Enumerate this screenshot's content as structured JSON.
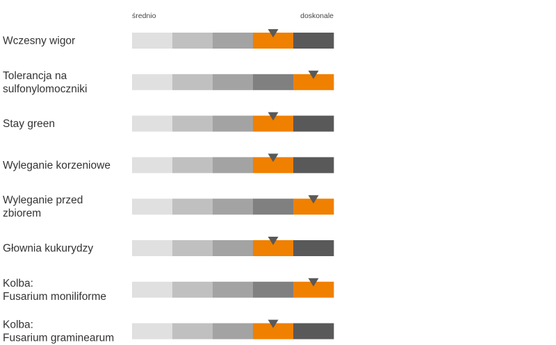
{
  "chart_data": {
    "type": "rating-scale",
    "scale_labels": {
      "min": "średnio",
      "max": "doskonale"
    },
    "levels": 5,
    "colors": {
      "segments": [
        "#e0e0e0",
        "#c0c0c0",
        "#a3a3a3",
        "#808080",
        "#595959"
      ],
      "highlight": "#f08000",
      "marker": "#595959"
    },
    "traits": [
      {
        "label_lines": [
          "Wczesny wigor"
        ],
        "rating": 4
      },
      {
        "label_lines": [
          "Tolerancja na",
          "sulfonylomoczniki"
        ],
        "rating": 5
      },
      {
        "label_lines": [
          "Stay green"
        ],
        "rating": 4
      },
      {
        "label_lines": [
          "Wyleganie korzeniowe"
        ],
        "rating": 4
      },
      {
        "label_lines": [
          "Wyleganie przed",
          "zbiorem"
        ],
        "rating": 5
      },
      {
        "label_lines": [
          "Głownia kukurydzy"
        ],
        "rating": 4
      },
      {
        "label_lines": [
          "Kolba:",
          "Fusarium moniliforme"
        ],
        "rating": 5
      },
      {
        "label_lines": [
          "Kolba:",
          "Fusarium graminearum"
        ],
        "rating": 4
      }
    ]
  }
}
